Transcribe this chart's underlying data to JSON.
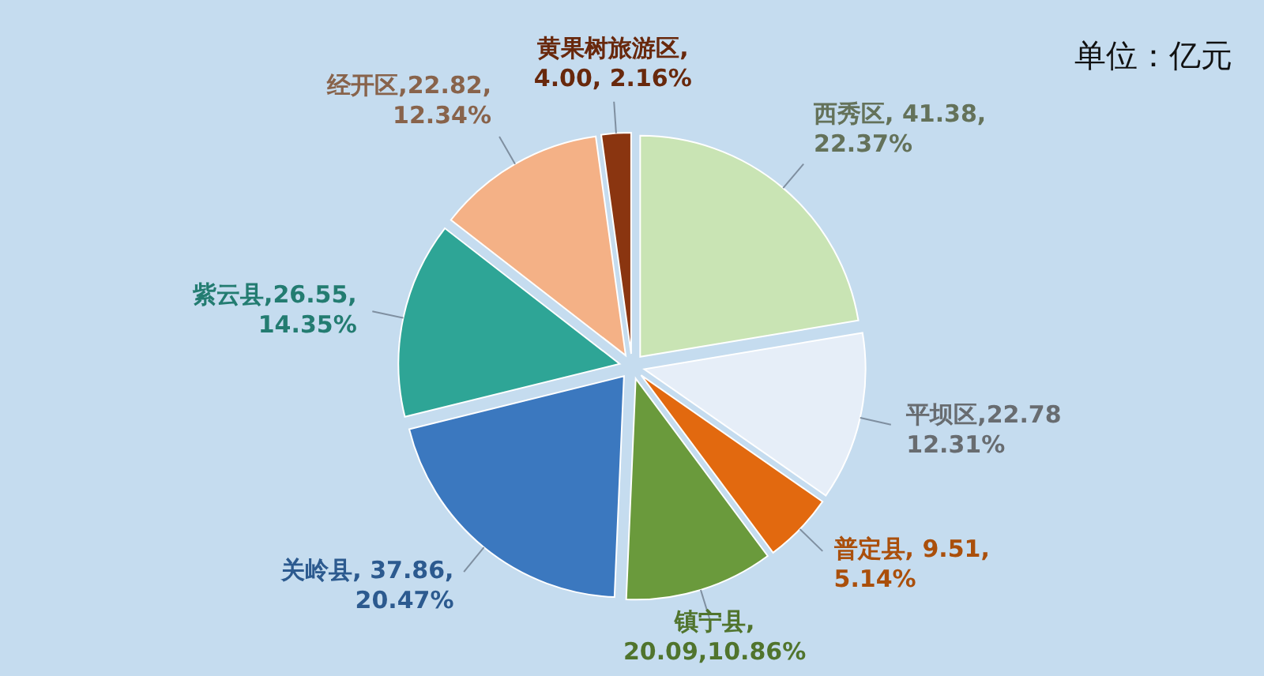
{
  "chart_data": {
    "type": "pie",
    "annotations": [
      "单位：亿元"
    ],
    "categories": [
      "西秀区",
      "平坝区",
      "普定县",
      "镇宁县",
      "关岭县",
      "紫云县",
      "经开区",
      "黄果树旅游区"
    ],
    "values": [
      41.38,
      22.78,
      9.51,
      20.09,
      37.86,
      26.55,
      22.82,
      4.0
    ],
    "colors": [
      "#c9e4b4",
      "#e6eef8",
      "#e2690f",
      "#6a9a3c",
      "#3b78bf",
      "#2ea596",
      "#f4b186",
      "#8a3510"
    ],
    "value_labels": [
      ", 41.38,\n22.37%",
      ",22.78\n12.31%",
      ", 9.51,\n5.14%",
      ",\n20.09,10.86%",
      ", 37.86,\n20.47%",
      ",26.55,\n14.35%",
      ",22.82,\n12.34%",
      ",\n4.00, 2.16%"
    ]
  }
}
